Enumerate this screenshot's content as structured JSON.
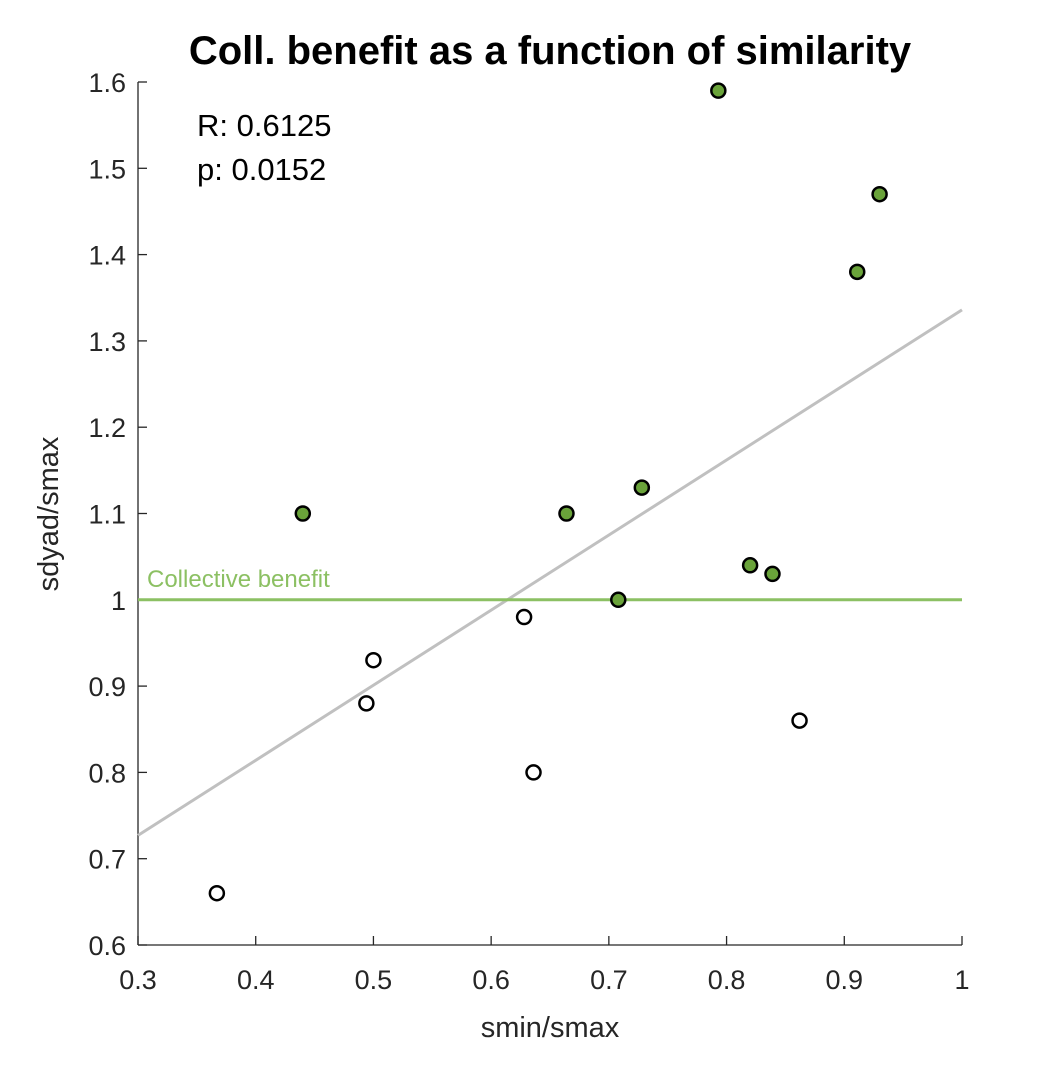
{
  "chart_data": {
    "type": "scatter",
    "title": "Coll. benefit as a function of similarity",
    "xlabel": "smin/smax",
    "ylabel": "sdyad/smax",
    "xlim": [
      0.3,
      1
    ],
    "ylim": [
      0.6,
      1.6
    ],
    "xticks": [
      "0.3",
      "0.4",
      "0.5",
      "0.6",
      "0.7",
      "0.8",
      "0.9",
      "1"
    ],
    "yticks": [
      "0.6",
      "0.7",
      "0.8",
      "0.9",
      "1",
      "1.1",
      "1.2",
      "1.3",
      "1.4",
      "1.5",
      "1.6"
    ],
    "grid": false,
    "annotations": [
      "R: 0.6125",
      "p: 0.0152"
    ],
    "reference_line": {
      "y": 1,
      "label": "Collective benefit",
      "color": "#8cc063"
    },
    "fit_line": {
      "x": [
        0.3,
        1
      ],
      "y": [
        0.727,
        1.336
      ],
      "color": "#c0c0c0"
    },
    "points": [
      {
        "x": 0.367,
        "y": 0.66,
        "benefit": false
      },
      {
        "x": 0.44,
        "y": 1.1,
        "benefit": true
      },
      {
        "x": 0.494,
        "y": 0.88,
        "benefit": false
      },
      {
        "x": 0.5,
        "y": 0.93,
        "benefit": false
      },
      {
        "x": 0.628,
        "y": 0.98,
        "benefit": false
      },
      {
        "x": 0.636,
        "y": 0.8,
        "benefit": false
      },
      {
        "x": 0.664,
        "y": 1.1,
        "benefit": true
      },
      {
        "x": 0.708,
        "y": 1.0,
        "benefit": true
      },
      {
        "x": 0.728,
        "y": 1.13,
        "benefit": true
      },
      {
        "x": 0.793,
        "y": 1.59,
        "benefit": true
      },
      {
        "x": 0.82,
        "y": 1.04,
        "benefit": true
      },
      {
        "x": 0.839,
        "y": 1.03,
        "benefit": true
      },
      {
        "x": 0.862,
        "y": 0.86,
        "benefit": false
      },
      {
        "x": 0.911,
        "y": 1.38,
        "benefit": true
      },
      {
        "x": 0.93,
        "y": 1.47,
        "benefit": true
      }
    ],
    "colors": {
      "benefit_fill": "#6aa33a",
      "no_benefit_fill": "#ffffff",
      "marker_edge": "#000000",
      "axis": "#262626"
    }
  }
}
